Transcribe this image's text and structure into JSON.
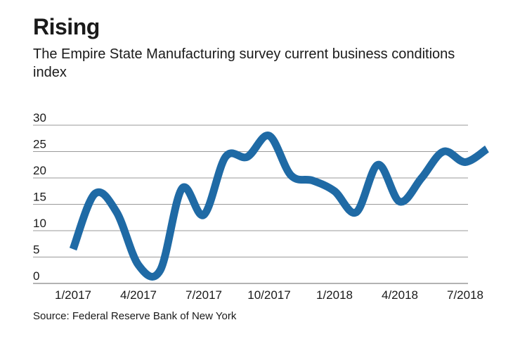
{
  "header": {
    "title": "Rising",
    "subtitle": "The Empire State Manufacturing survey current business conditions index"
  },
  "footer": {
    "source": "Source: Federal Reserve Bank of New York"
  },
  "colors": {
    "line": "#1f6aa5",
    "grid": "#9a9a9a",
    "text": "#1a1a1a"
  },
  "chart_data": {
    "type": "line",
    "title": "Rising",
    "subtitle": "The Empire State Manufacturing survey current business conditions index",
    "xlabel": "",
    "ylabel": "",
    "ylim": [
      0,
      30
    ],
    "y_ticks": [
      "0",
      "5",
      "10",
      "15",
      "20",
      "25",
      "30"
    ],
    "x_tick_labels": [
      "1/2017",
      "4/2017",
      "7/2017",
      "10/2017",
      "1/2018",
      "4/2018",
      "7/2018"
    ],
    "grid": true,
    "legend": "none",
    "series": [
      {
        "x": [
          "1/2017",
          "2/2017",
          "3/2017",
          "4/2017",
          "5/2017",
          "6/2017",
          "7/2017",
          "8/2017",
          "9/2017",
          "10/2017",
          "11/2017",
          "12/2017",
          "1/2018",
          "2/2018",
          "3/2018",
          "4/2018",
          "5/2018",
          "6/2018",
          "7/2018",
          "8/2018"
        ],
        "values": [
          6.5,
          17.0,
          13.5,
          3.5,
          2.5,
          18.0,
          13.0,
          24.0,
          24.0,
          28.0,
          20.5,
          19.5,
          17.5,
          13.5,
          22.5,
          15.5,
          20.0,
          25.0,
          23.0,
          25.5
        ]
      }
    ]
  }
}
